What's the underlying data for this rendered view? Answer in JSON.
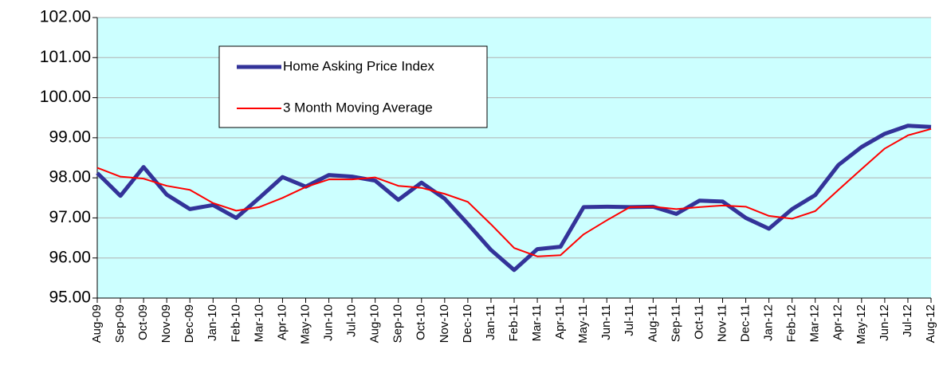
{
  "chart_data": {
    "type": "line",
    "categories": [
      "Aug-09",
      "Sep-09",
      "Oct-09",
      "Nov-09",
      "Dec-09",
      "Jan-10",
      "Feb-10",
      "Mar-10",
      "Apr-10",
      "May-10",
      "Jun-10",
      "Jul-10",
      "Aug-10",
      "Sep-10",
      "Oct-10",
      "Nov-10",
      "Dec-10",
      "Jan-11",
      "Feb-11",
      "Mar-11",
      "Apr-11",
      "May-11",
      "Jun-11",
      "Jul-11",
      "Aug-11",
      "Sep-11",
      "Oct-11",
      "Nov-11",
      "Dec-11",
      "Jan-12",
      "Feb-12",
      "Mar-12",
      "Apr-12",
      "May-12",
      "Jun-12",
      "Jul-12",
      "Aug-12"
    ],
    "series": [
      {
        "name": "Home Asking Price Index",
        "color": "#333399",
        "values": [
          98.12,
          97.55,
          98.27,
          97.58,
          97.22,
          97.32,
          97.0,
          97.5,
          98.02,
          97.78,
          98.07,
          98.03,
          97.93,
          97.45,
          97.88,
          97.48,
          96.85,
          96.2,
          95.7,
          96.22,
          96.28,
          97.27,
          97.28,
          97.27,
          97.28,
          97.1,
          97.43,
          97.41,
          97.0,
          96.73,
          97.22,
          97.57,
          98.32,
          98.77,
          99.1,
          99.3,
          99.27
        ]
      },
      {
        "name": "3 Month Moving Average",
        "color": "#ff0000",
        "values": [
          98.25,
          98.03,
          97.98,
          97.8,
          97.7,
          97.37,
          97.18,
          97.27,
          97.5,
          97.77,
          97.96,
          97.96,
          98.01,
          97.8,
          97.75,
          97.6,
          97.4,
          96.84,
          96.25,
          96.04,
          96.07,
          96.59,
          96.94,
          97.27,
          97.28,
          97.22,
          97.27,
          97.31,
          97.28,
          97.05,
          96.98,
          97.17,
          97.7,
          98.22,
          98.73,
          99.06,
          99.22
        ]
      }
    ],
    "ylim": [
      95,
      102
    ],
    "yticks": [
      {
        "value": 95,
        "label": "95.00"
      },
      {
        "value": 96,
        "label": "96.00"
      },
      {
        "value": 97,
        "label": "97.00"
      },
      {
        "value": 98,
        "label": "98.00"
      },
      {
        "value": 99,
        "label": "99.00"
      },
      {
        "value": 100,
        "label": "100.00"
      },
      {
        "value": 101,
        "label": "101.00"
      },
      {
        "value": 102,
        "label": "102.00"
      }
    ],
    "grid": true,
    "background": "#ccffff",
    "legend": "upper-left"
  }
}
